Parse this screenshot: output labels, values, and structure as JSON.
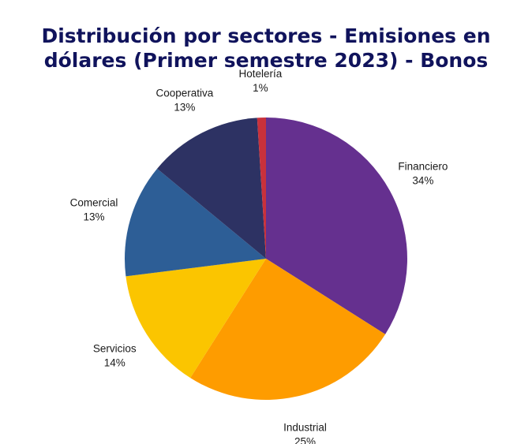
{
  "chart_data": {
    "type": "pie",
    "title_lines": [
      "Distribución por sectores - Emisiones en",
      "dólares (Primer semestre 2023) - Bonos"
    ],
    "slices": [
      {
        "name": "Financiero",
        "label": "34%",
        "value": 34,
        "color": "#65308f"
      },
      {
        "name": "Industrial",
        "label": "25%",
        "value": 25,
        "color": "#fe9c00"
      },
      {
        "name": "Servicios",
        "label": "14%",
        "value": 14,
        "color": "#fbc500"
      },
      {
        "name": "Comercial",
        "label": "13%",
        "value": 13,
        "color": "#2d5e96"
      },
      {
        "name": "Cooperativa",
        "label": "13%",
        "value": 13,
        "color": "#2d3263"
      },
      {
        "name": "Hotelería",
        "label": "1%",
        "value": 1,
        "color": "#c9313b"
      }
    ],
    "legend": "none"
  }
}
